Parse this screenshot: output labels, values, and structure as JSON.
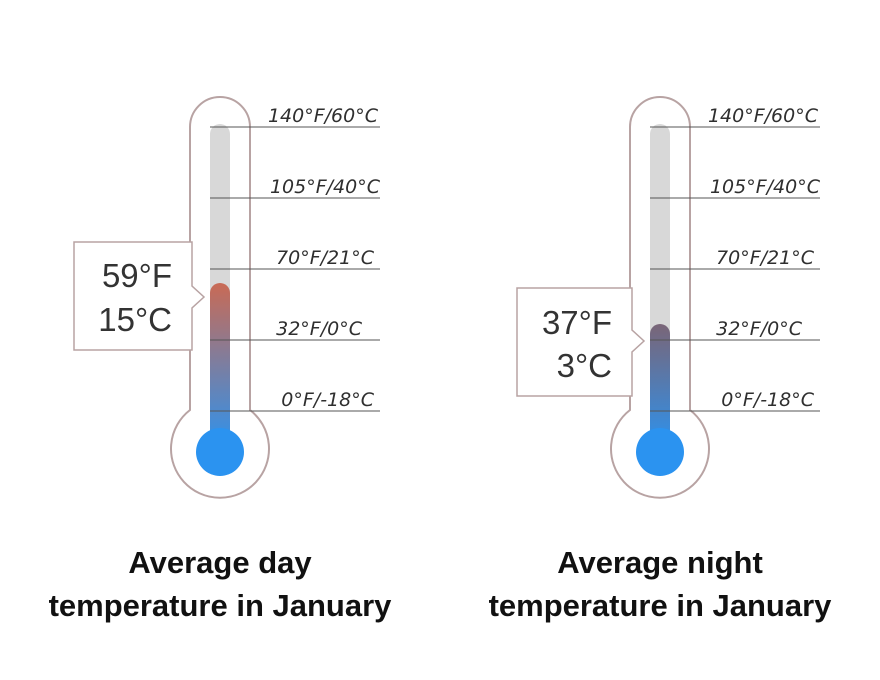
{
  "thermometers": [
    {
      "caption_line1": "Average day",
      "caption_line2": "temperature in January",
      "reading_f": "59°F",
      "reading_c": "15°C",
      "level_celsius": 15,
      "fill_colors": {
        "top": "#c96a55",
        "bottom": "#2b93f0"
      }
    },
    {
      "caption_line1": "Average night",
      "caption_line2": "temperature in January",
      "reading_f": "37°F",
      "reading_c": "3°C",
      "level_celsius": 3,
      "fill_colors": {
        "top": "#7a6577",
        "bottom": "#2b93f0"
      }
    }
  ],
  "scale": {
    "ticks": [
      {
        "label": "140°F/60°C",
        "celsius": 60
      },
      {
        "label": "105°F/40°C",
        "celsius": 40
      },
      {
        "label": "70°F/21°C",
        "celsius": 21
      },
      {
        "label": "32°F/0°C",
        "celsius": 0
      },
      {
        "label": "0°F/-18°C",
        "celsius": -18
      }
    ]
  },
  "colors": {
    "outline": "#b8a3a3",
    "empty_tube": "#d8d8d8",
    "bulb": "#2b93f0",
    "tick_line": "#555555",
    "callout_border": "#b8a3a3"
  }
}
